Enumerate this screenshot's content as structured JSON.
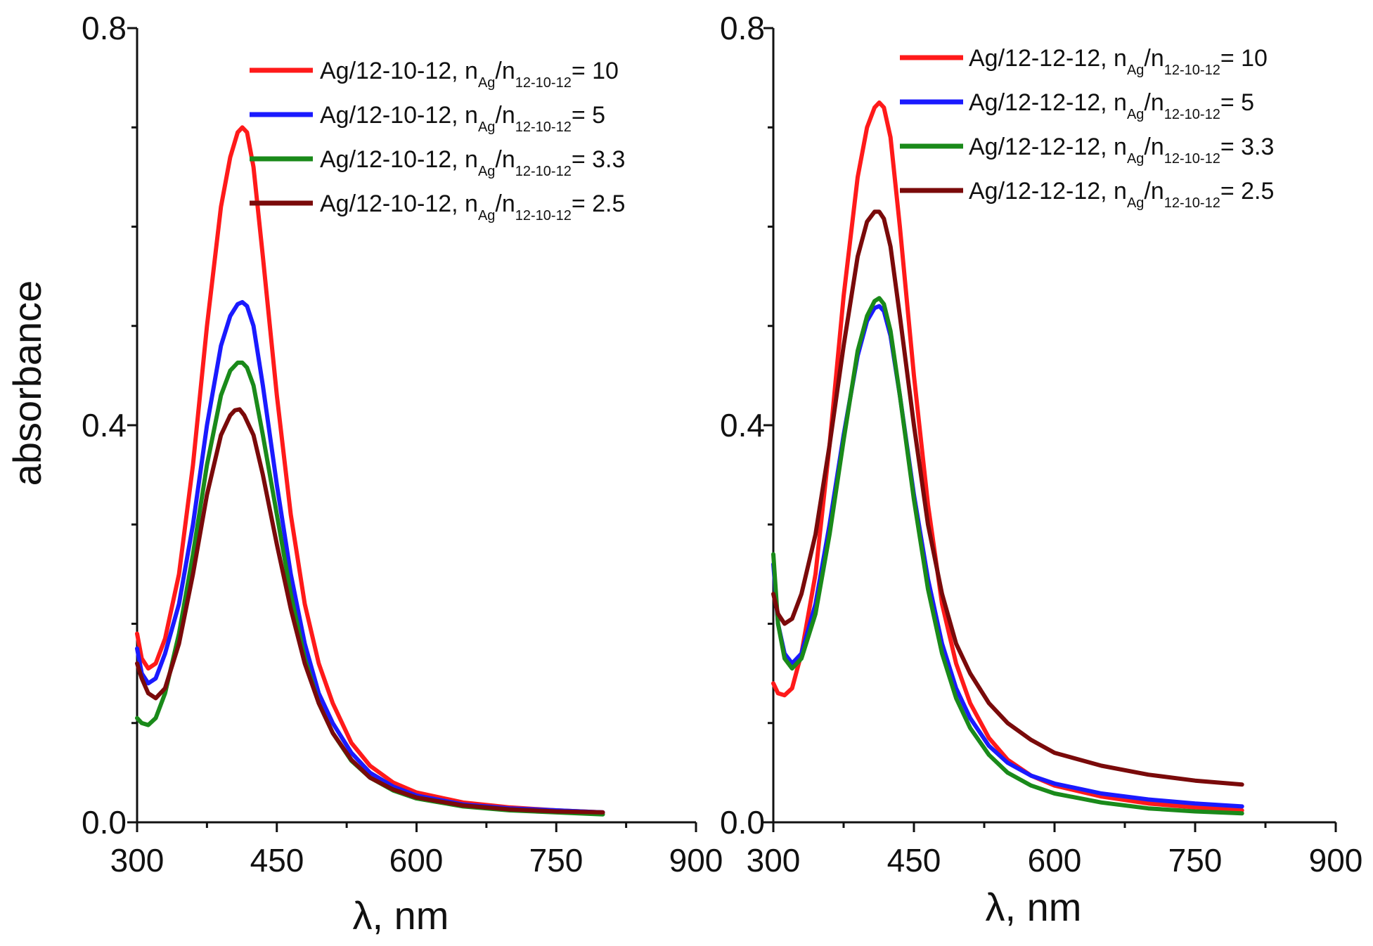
{
  "chart_data": [
    {
      "type": "line",
      "panel": "left",
      "xlabel": "λ, nm",
      "ylabel": "absorbance",
      "xlim": [
        300,
        900
      ],
      "ylim": [
        0.0,
        0.8
      ],
      "xticks": [
        "300",
        "450",
        "600",
        "750",
        "900"
      ],
      "yticks": [
        "0.0",
        "0.4",
        "0.8"
      ],
      "legend_placement": "top-right",
      "series": [
        {
          "name": "Ag/12-10-12, nAg/n12-10-12= 10",
          "legend": {
            "prefix": "Ag/12-10-12, n",
            "sub1": "Ag",
            "mid": "/n",
            "sub2": "12-10-12",
            "value": "= 10"
          },
          "color": "#ff1a1a",
          "x": [
            300,
            305,
            312,
            320,
            330,
            345,
            360,
            375,
            390,
            400,
            408,
            413,
            418,
            425,
            435,
            450,
            465,
            480,
            495,
            510,
            530,
            550,
            575,
            600,
            650,
            700,
            750,
            800
          ],
          "y": [
            0.19,
            0.165,
            0.155,
            0.16,
            0.185,
            0.25,
            0.36,
            0.5,
            0.62,
            0.67,
            0.695,
            0.7,
            0.695,
            0.66,
            0.57,
            0.43,
            0.31,
            0.22,
            0.16,
            0.12,
            0.08,
            0.057,
            0.04,
            0.03,
            0.02,
            0.015,
            0.012,
            0.01
          ]
        },
        {
          "name": "Ag/12-10-12, nAg/n12-10-12= 5",
          "legend": {
            "prefix": "Ag/12-10-12, n",
            "sub1": "Ag",
            "mid": "/n",
            "sub2": "12-10-12",
            "value": "= 5"
          },
          "color": "#1a1aff",
          "x": [
            300,
            305,
            312,
            320,
            330,
            345,
            360,
            375,
            390,
            400,
            408,
            413,
            418,
            425,
            435,
            450,
            465,
            480,
            495,
            510,
            530,
            550,
            575,
            600,
            650,
            700,
            750,
            800
          ],
          "y": [
            0.175,
            0.15,
            0.14,
            0.145,
            0.17,
            0.22,
            0.3,
            0.4,
            0.48,
            0.51,
            0.522,
            0.524,
            0.52,
            0.5,
            0.44,
            0.34,
            0.25,
            0.18,
            0.13,
            0.1,
            0.07,
            0.05,
            0.036,
            0.027,
            0.018,
            0.014,
            0.012,
            0.01
          ]
        },
        {
          "name": "Ag/12-10-12, nAg/n12-10-12= 3.3",
          "legend": {
            "prefix": "Ag/12-10-12, n",
            "sub1": "Ag",
            "mid": "/n",
            "sub2": "12-10-12",
            "value": "= 3.3"
          },
          "color": "#1a8a1a",
          "x": [
            300,
            305,
            312,
            320,
            330,
            345,
            360,
            375,
            390,
            400,
            408,
            413,
            418,
            425,
            435,
            450,
            465,
            480,
            495,
            510,
            530,
            550,
            575,
            600,
            650,
            700,
            750,
            800
          ],
          "y": [
            0.105,
            0.1,
            0.098,
            0.105,
            0.13,
            0.19,
            0.27,
            0.36,
            0.43,
            0.455,
            0.463,
            0.463,
            0.458,
            0.44,
            0.39,
            0.31,
            0.23,
            0.165,
            0.12,
            0.09,
            0.062,
            0.045,
            0.032,
            0.024,
            0.016,
            0.012,
            0.01,
            0.008
          ]
        },
        {
          "name": "Ag/12-10-12, nAg/n12-10-12= 2.5",
          "legend": {
            "prefix": "Ag/12-10-12, n",
            "sub1": "Ag",
            "mid": "/n",
            "sub2": "12-10-12",
            "value": "= 2.5"
          },
          "color": "#7a0a0a",
          "x": [
            300,
            305,
            312,
            320,
            330,
            345,
            360,
            375,
            390,
            400,
            405,
            410,
            415,
            425,
            435,
            450,
            465,
            480,
            495,
            510,
            530,
            550,
            575,
            600,
            650,
            700,
            750,
            800
          ],
          "y": [
            0.16,
            0.145,
            0.13,
            0.125,
            0.135,
            0.18,
            0.25,
            0.33,
            0.39,
            0.41,
            0.415,
            0.416,
            0.41,
            0.39,
            0.35,
            0.28,
            0.215,
            0.16,
            0.12,
            0.09,
            0.063,
            0.045,
            0.033,
            0.025,
            0.017,
            0.013,
            0.011,
            0.01
          ]
        }
      ]
    },
    {
      "type": "line",
      "panel": "right",
      "xlabel": "λ, nm",
      "ylabel": "",
      "xlim": [
        300,
        900
      ],
      "ylim": [
        0.0,
        0.8
      ],
      "xticks": [
        "300",
        "450",
        "600",
        "750",
        "900"
      ],
      "yticks": [
        "0.0",
        "0.4",
        "0.8"
      ],
      "legend_placement": "top-right",
      "series": [
        {
          "name": "Ag/12-12-12, nAg/n12-10-12= 10",
          "legend": {
            "prefix": "Ag/12-12-12, n",
            "sub1": "Ag",
            "mid": "/n",
            "sub2": "12-10-12",
            "value": "= 10"
          },
          "color": "#ff1a1a",
          "x": [
            300,
            305,
            312,
            320,
            330,
            345,
            360,
            375,
            390,
            400,
            408,
            413,
            418,
            425,
            435,
            450,
            465,
            480,
            495,
            510,
            530,
            550,
            575,
            600,
            650,
            700,
            750,
            800
          ],
          "y": [
            0.14,
            0.13,
            0.128,
            0.135,
            0.17,
            0.25,
            0.38,
            0.53,
            0.65,
            0.7,
            0.72,
            0.725,
            0.72,
            0.69,
            0.6,
            0.45,
            0.32,
            0.22,
            0.16,
            0.12,
            0.085,
            0.063,
            0.047,
            0.037,
            0.026,
            0.019,
            0.015,
            0.012
          ]
        },
        {
          "name": "Ag/12-12-12, nAg/n12-10-12= 5",
          "legend": {
            "prefix": "Ag/12-12-12, n",
            "sub1": "Ag",
            "mid": "/n",
            "sub2": "12-10-12",
            "value": "= 5"
          },
          "color": "#1a1aff",
          "x": [
            300,
            305,
            312,
            320,
            330,
            345,
            360,
            375,
            390,
            400,
            408,
            413,
            418,
            425,
            435,
            450,
            465,
            480,
            495,
            510,
            530,
            550,
            575,
            600,
            650,
            700,
            750,
            800
          ],
          "y": [
            0.26,
            0.2,
            0.17,
            0.16,
            0.17,
            0.22,
            0.3,
            0.39,
            0.47,
            0.505,
            0.518,
            0.52,
            0.515,
            0.49,
            0.43,
            0.33,
            0.245,
            0.18,
            0.135,
            0.105,
            0.077,
            0.06,
            0.047,
            0.039,
            0.029,
            0.023,
            0.019,
            0.016
          ]
        },
        {
          "name": "Ag/12-12-12, nAg/n12-10-12= 3.3",
          "legend": {
            "prefix": "Ag/12-12-12, n",
            "sub1": "Ag",
            "mid": "/n",
            "sub2": "12-10-12",
            "value": "= 3.3"
          },
          "color": "#1a8a1a",
          "x": [
            300,
            305,
            312,
            320,
            330,
            345,
            360,
            375,
            390,
            400,
            408,
            413,
            418,
            425,
            435,
            450,
            465,
            480,
            495,
            510,
            530,
            550,
            575,
            600,
            650,
            700,
            750,
            800
          ],
          "y": [
            0.27,
            0.2,
            0.165,
            0.155,
            0.165,
            0.21,
            0.29,
            0.385,
            0.475,
            0.51,
            0.525,
            0.528,
            0.522,
            0.495,
            0.43,
            0.325,
            0.235,
            0.17,
            0.125,
            0.095,
            0.068,
            0.05,
            0.037,
            0.029,
            0.02,
            0.014,
            0.011,
            0.009
          ]
        },
        {
          "name": "Ag/12-12-12, nAg/n12-10-12= 2.5",
          "legend": {
            "prefix": "Ag/12-12-12, n",
            "sub1": "Ag",
            "mid": "/n",
            "sub2": "12-10-12",
            "value": "= 2.5"
          },
          "color": "#7a0a0a",
          "x": [
            300,
            305,
            312,
            320,
            330,
            345,
            360,
            375,
            390,
            400,
            408,
            413,
            418,
            425,
            435,
            450,
            465,
            480,
            495,
            510,
            530,
            550,
            575,
            600,
            650,
            700,
            750,
            800
          ],
          "y": [
            0.23,
            0.21,
            0.2,
            0.205,
            0.23,
            0.29,
            0.38,
            0.48,
            0.57,
            0.605,
            0.615,
            0.615,
            0.608,
            0.58,
            0.51,
            0.4,
            0.3,
            0.23,
            0.18,
            0.15,
            0.12,
            0.1,
            0.083,
            0.07,
            0.057,
            0.048,
            0.042,
            0.038
          ]
        }
      ]
    }
  ]
}
